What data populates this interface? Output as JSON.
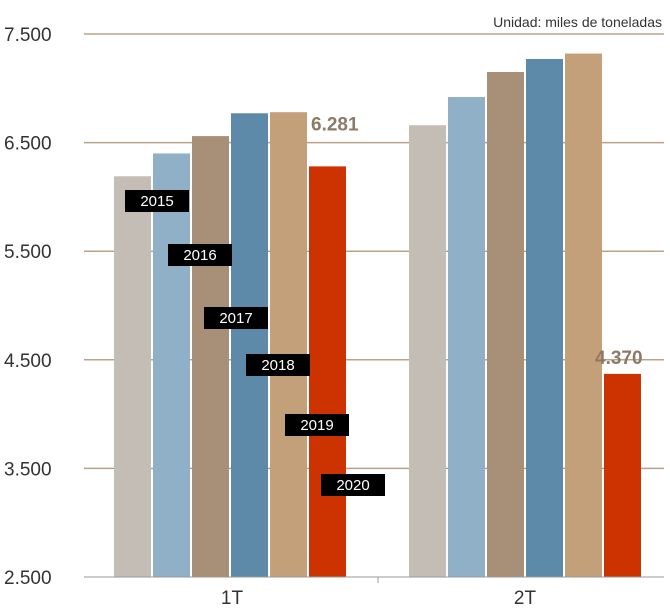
{
  "chart_data": {
    "type": "bar",
    "unit_note": "Unidad: miles de toneladas",
    "categories": [
      "1T",
      "2T"
    ],
    "y_ticks": [
      "7.500",
      "6.500",
      "5.500",
      "4.500",
      "3.500",
      "2.500"
    ],
    "y_tick_values": [
      7500,
      6500,
      5500,
      4500,
      3500,
      2500
    ],
    "ylim": [
      2500,
      7500
    ],
    "grid": true,
    "series": [
      {
        "name": "2015",
        "values": [
          6190,
          6660
        ],
        "color": "#c4bdb6"
      },
      {
        "name": "2016",
        "values": [
          6400,
          6920
        ],
        "color": "#8fb0c6"
      },
      {
        "name": "2017",
        "values": [
          6560,
          7150
        ],
        "color": "#a89078"
      },
      {
        "name": "2018",
        "values": [
          6770,
          7270
        ],
        "color": "#5d8aa8"
      },
      {
        "name": "2019",
        "values": [
          6780,
          7320
        ],
        "color": "#c4a07a"
      },
      {
        "name": "2020",
        "values": [
          6281,
          4370
        ],
        "color": "#cc3300"
      }
    ],
    "data_labels": [
      "6.281",
      "4.370"
    ],
    "accent_colors": {
      "grid": "#b8a38a",
      "label_value": "#8c7a66",
      "legend_bg": "#000000",
      "legend_text": "#ffffff"
    }
  }
}
